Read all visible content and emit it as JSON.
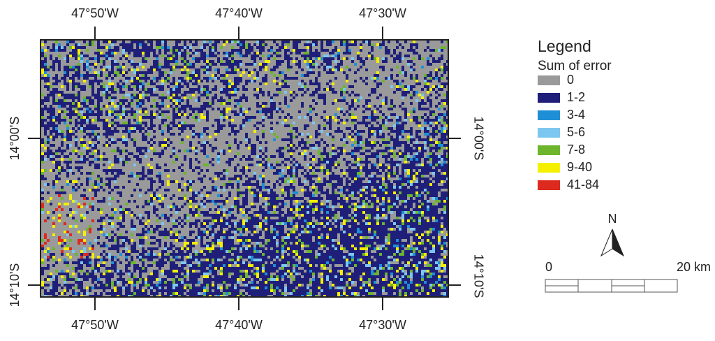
{
  "top_labels": [
    "47°50'W",
    "47°40'W",
    "47°30'W"
  ],
  "bottom_labels": [
    "47°50'W",
    "47°40'W",
    "47°30'W"
  ],
  "left_labels": [
    "14°00'S",
    "14°10'S"
  ],
  "right_labels": [
    "14°00'S",
    "14°10'S"
  ],
  "legend": {
    "title": "Legend",
    "subtitle": "Sum of error",
    "items": [
      {
        "label": "0",
        "color": "#9a9a9a"
      },
      {
        "label": "1-2",
        "color": "#1f1f7a"
      },
      {
        "label": "3-4",
        "color": "#1e8fd6"
      },
      {
        "label": "5-6",
        "color": "#7cc7ef"
      },
      {
        "label": "7-8",
        "color": "#6cb52d"
      },
      {
        "label": "9-40",
        "color": "#f4f000"
      },
      {
        "label": "41-84",
        "color": "#dd2a1f"
      }
    ]
  },
  "north": "N",
  "scale": {
    "start": "0",
    "end": "20 km"
  }
}
